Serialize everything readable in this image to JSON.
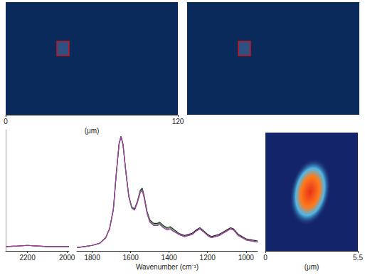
{
  "chart_data": [
    {
      "type": "image",
      "xlim": [
        0,
        120
      ],
      "xticks": [
        0,
        120
      ],
      "xlabel": "(μm)",
      "tick_labels": "x"
    },
    {
      "type": "image",
      "tick_labels": false
    },
    {
      "type": "line",
      "xlim": [
        2310,
        1990
      ],
      "xticks": [
        2200,
        2000
      ],
      "ylim": [
        0,
        1.1
      ],
      "tick_labels": "x",
      "x": [
        2310,
        2250,
        2200,
        2150,
        2100,
        2050,
        1990
      ],
      "series": [
        {
          "color": "#222222",
          "values": [
            0.04,
            0.045,
            0.05,
            0.045,
            0.04,
            0.04,
            0.04
          ]
        },
        {
          "color": "#2ca02c",
          "values": [
            0.04,
            0.045,
            0.05,
            0.045,
            0.04,
            0.04,
            0.04
          ]
        },
        {
          "color": "#b030b0",
          "values": [
            0.04,
            0.045,
            0.05,
            0.045,
            0.04,
            0.04,
            0.04
          ]
        }
      ]
    },
    {
      "type": "line",
      "xlim": [
        1880,
        940
      ],
      "xticks": [
        1800,
        1600,
        1400,
        1200,
        1000
      ],
      "ylim": [
        0,
        1.1
      ],
      "tick_labels": "x",
      "xlabel": "Wavenumber (cm⁻¹)",
      "x": [
        1880,
        1840,
        1800,
        1760,
        1730,
        1710,
        1690,
        1675,
        1660,
        1650,
        1640,
        1625,
        1610,
        1595,
        1580,
        1565,
        1550,
        1540,
        1530,
        1515,
        1500,
        1480,
        1460,
        1450,
        1430,
        1410,
        1395,
        1380,
        1350,
        1320,
        1300,
        1280,
        1260,
        1240,
        1225,
        1200,
        1180,
        1160,
        1140,
        1120,
        1100,
        1080,
        1065,
        1040,
        1000,
        970,
        940
      ],
      "series": [
        {
          "color": "#222222",
          "values": [
            0.03,
            0.04,
            0.05,
            0.07,
            0.12,
            0.2,
            0.38,
            0.7,
            0.98,
            1.04,
            0.97,
            0.72,
            0.5,
            0.4,
            0.38,
            0.45,
            0.55,
            0.57,
            0.5,
            0.36,
            0.28,
            0.25,
            0.25,
            0.26,
            0.23,
            0.21,
            0.22,
            0.2,
            0.16,
            0.14,
            0.15,
            0.16,
            0.19,
            0.21,
            0.19,
            0.15,
            0.13,
            0.14,
            0.15,
            0.17,
            0.19,
            0.21,
            0.2,
            0.15,
            0.11,
            0.1,
            0.09
          ]
        },
        {
          "color": "#2ca02c",
          "values": [
            0.03,
            0.04,
            0.05,
            0.07,
            0.12,
            0.2,
            0.37,
            0.69,
            0.97,
            1.03,
            0.96,
            0.71,
            0.49,
            0.39,
            0.37,
            0.44,
            0.54,
            0.56,
            0.49,
            0.35,
            0.27,
            0.24,
            0.24,
            0.25,
            0.22,
            0.2,
            0.21,
            0.19,
            0.15,
            0.13,
            0.14,
            0.15,
            0.18,
            0.2,
            0.18,
            0.14,
            0.12,
            0.13,
            0.14,
            0.16,
            0.18,
            0.2,
            0.19,
            0.14,
            0.1,
            0.09,
            0.08
          ]
        },
        {
          "color": "#b030b0",
          "values": [
            0.03,
            0.04,
            0.05,
            0.07,
            0.12,
            0.2,
            0.38,
            0.7,
            0.98,
            1.04,
            0.97,
            0.72,
            0.5,
            0.4,
            0.37,
            0.44,
            0.53,
            0.55,
            0.48,
            0.34,
            0.26,
            0.23,
            0.23,
            0.24,
            0.21,
            0.19,
            0.2,
            0.18,
            0.15,
            0.13,
            0.14,
            0.15,
            0.18,
            0.2,
            0.18,
            0.14,
            0.12,
            0.13,
            0.14,
            0.16,
            0.18,
            0.2,
            0.19,
            0.14,
            0.1,
            0.09,
            0.08
          ]
        }
      ]
    },
    {
      "type": "image",
      "xlim": [
        0,
        5.5
      ],
      "xticks": [
        0,
        5.5
      ],
      "xlabel": "(μm)",
      "tick_labels": "x"
    }
  ]
}
